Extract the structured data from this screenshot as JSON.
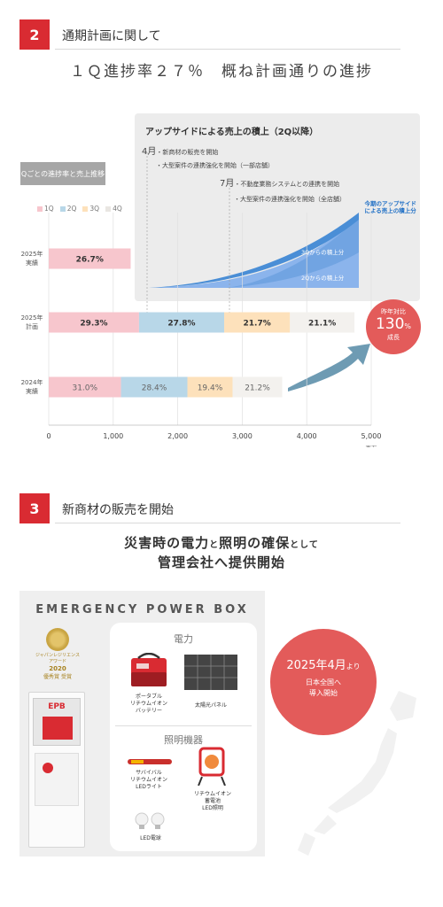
{
  "section2": {
    "number": "2",
    "title": "通期計画に関して",
    "headline": "１Ｑ進捗率２７％　概ね計画通りの進捗"
  },
  "chart_tag": "Qごとの進捗率と売上推移",
  "upside": {
    "title": "アップサイドによる売上の積上（2Q以降）",
    "note1_month": "4月",
    "note1_text": "・新商材の販売を開始",
    "note2_text": "・大型案件の連携強化を開始（一部店舗）",
    "note3_month": "7月",
    "note3_text": "・不動産業務システムとの連携を開始",
    "note4_text": "・大型案件の連携強化を開始（全店舗）",
    "label_line1": "今期のアップサイド",
    "label_line2": "による売上の積上分",
    "area_3q": "3Qからの積上分",
    "area_2q": "2Qからの積上分"
  },
  "growth": {
    "line1": "昨年対比",
    "value": "130",
    "unit": "%",
    "line3": "成長"
  },
  "chart_data": {
    "type": "bar",
    "orientation": "horizontal",
    "stacked": true,
    "unit": "百万",
    "xlim": [
      0,
      5000
    ],
    "x_ticks": [
      "0",
      "1,000",
      "2,000",
      "3,000",
      "4,000",
      "5,000"
    ],
    "legend_position": "top-left",
    "legend": [
      "1Q",
      "2Q",
      "3Q",
      "4Q"
    ],
    "colors": {
      "1Q": "#f7c6cd",
      "2Q": "#b8d7e8",
      "3Q": "#fde1bb",
      "4Q": "#f3f1ee"
    },
    "categories": [
      {
        "line1": "2025年",
        "line2": "実績"
      },
      {
        "line1": "2025年",
        "line2": "計画"
      },
      {
        "line1": "2024年",
        "line2": "実績"
      }
    ],
    "series": [
      {
        "name": "1Q",
        "values": [
          1270,
          1400,
          1120
        ],
        "labels": [
          "26.7%",
          "29.3%",
          "31.0%"
        ]
      },
      {
        "name": "2Q",
        "values": [
          0,
          1320,
          1030
        ],
        "labels": [
          "",
          "27.8%",
          "28.4%"
        ]
      },
      {
        "name": "3Q",
        "values": [
          0,
          1020,
          700
        ],
        "labels": [
          "",
          "21.7%",
          "19.4%"
        ]
      },
      {
        "name": "4Q",
        "values": [
          0,
          1000,
          770
        ],
        "labels": [
          "",
          "21.1%",
          "21.2%"
        ]
      }
    ]
  },
  "section3": {
    "number": "3",
    "title": "新商材の販売を開始",
    "headline1_a": "災害時の電力",
    "headline1_b": "と",
    "headline1_c": "照明の確保",
    "headline1_d": "として",
    "headline2": "管理会社へ提供開始"
  },
  "epb": {
    "title": "EMERGENCY POWER BOX",
    "award_line1": "ジャパンレジリエンスアワード",
    "award_year": "2020",
    "award_line2": "優秀賞 受賞",
    "cabinet_logo": "EPB",
    "power_heading": "電力",
    "battery_label1": "ポータブル",
    "battery_label2": "リチウムイオン",
    "battery_label3": "バッテリー",
    "solar_label": "太陽光パネル",
    "light_heading": "照明機器",
    "led_light_label1": "サバイバル",
    "led_light_label2": "リチウムイオン",
    "led_light_label3": "LEDライト",
    "storage_light_label1": "リチウムイオン",
    "storage_light_label2": "蓄電池",
    "storage_light_label3": "LED照明",
    "bulb_label": "LED電球"
  },
  "launch": {
    "date": "2025年4月",
    "date_suffix": "より",
    "line1": "日本全国へ",
    "line2": "導入開始"
  }
}
